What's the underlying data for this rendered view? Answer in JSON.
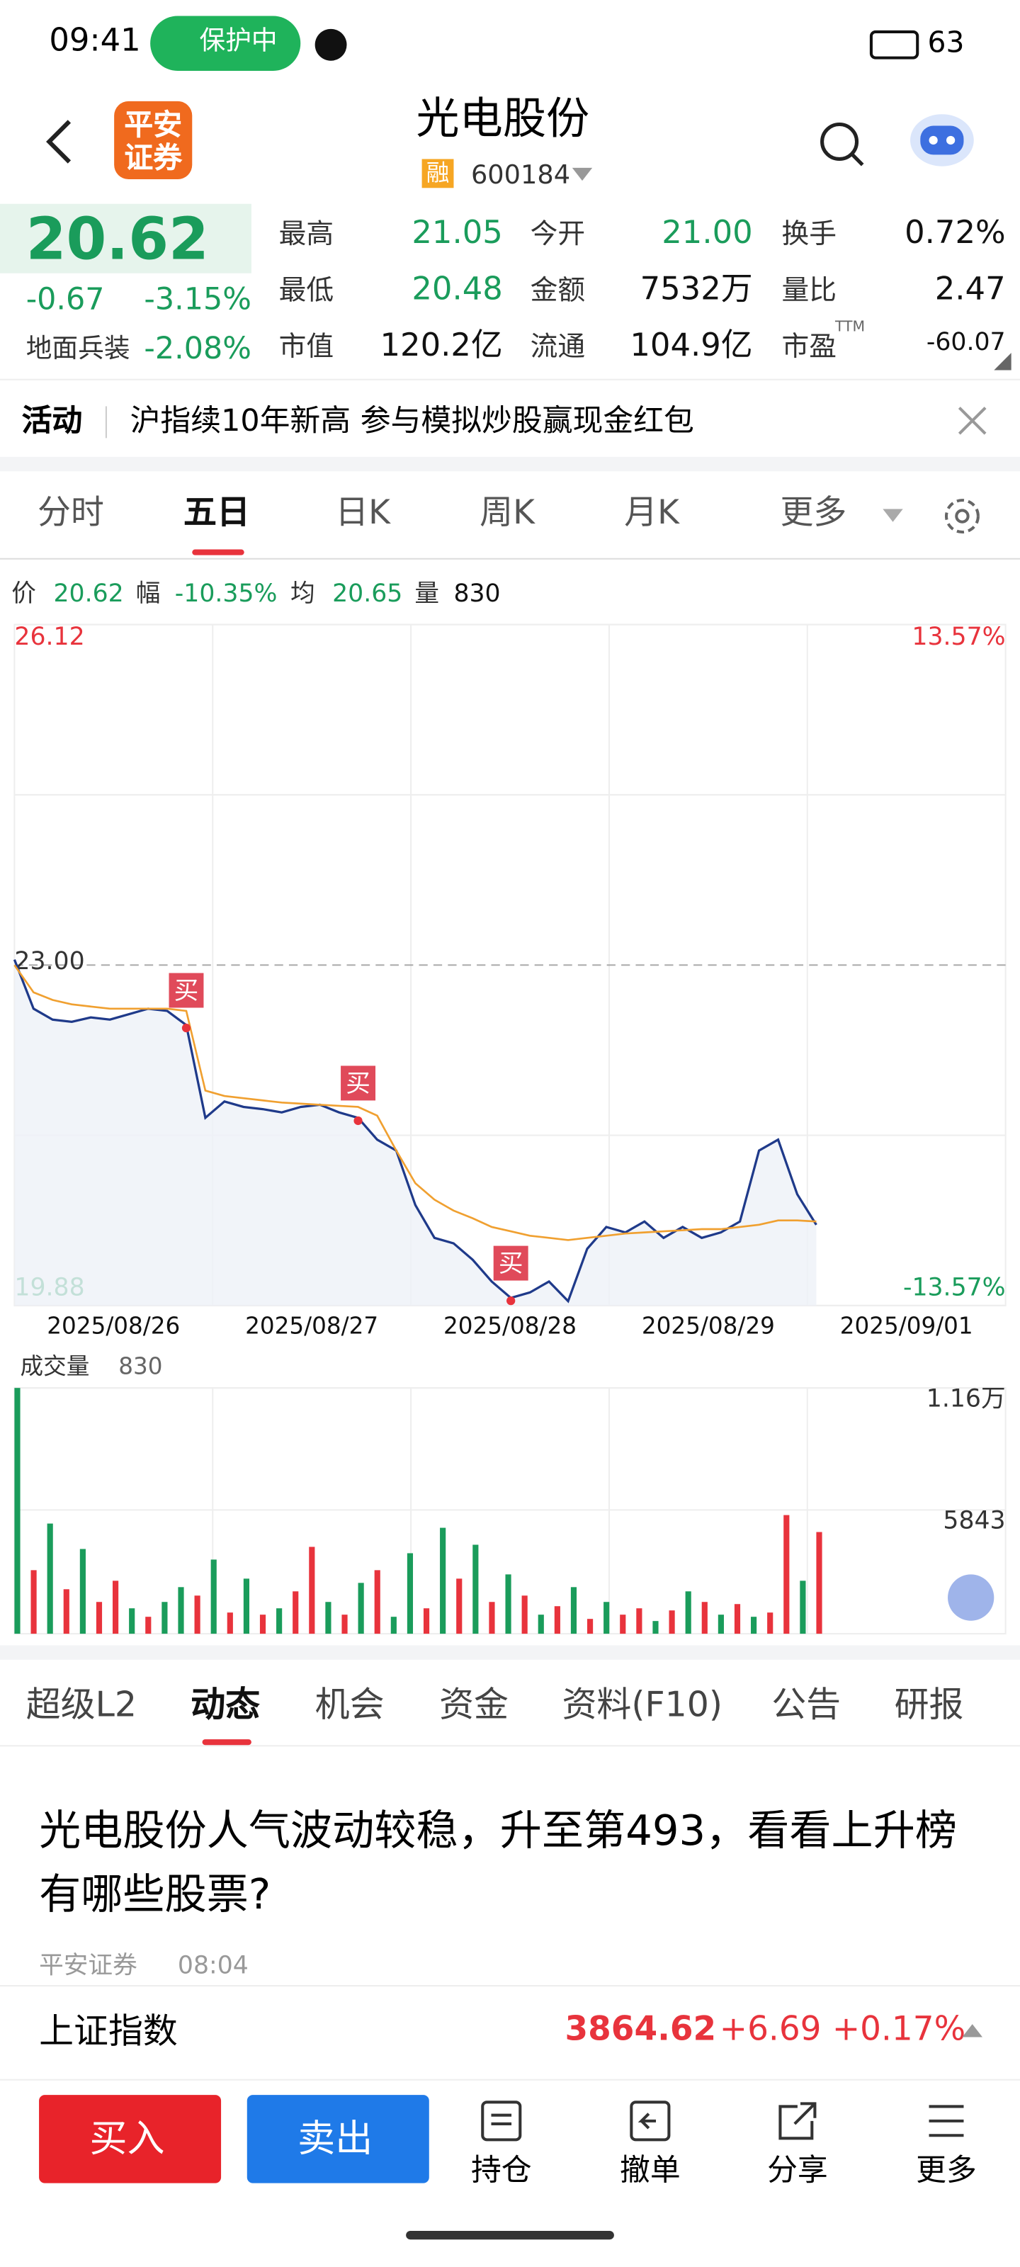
{
  "status_bar": {
    "time": "09:41",
    "badge": "保护中",
    "battery": "63"
  },
  "header": {
    "logo": [
      "平安",
      "证券"
    ],
    "title": "光电股份",
    "tag": "融",
    "code": "600184"
  },
  "quote": {
    "price": "20.62",
    "change": "-0.67",
    "change_pct": "-3.15%",
    "sector": "地面兵装",
    "sector_pct": "-2.08%",
    "fields": [
      [
        "最高",
        "21.05"
      ],
      [
        "今开",
        "21.00"
      ],
      [
        "换手",
        "0.72%"
      ],
      [
        "最低",
        "20.48"
      ],
      [
        "金额",
        "7532万"
      ],
      [
        "量比",
        "2.47"
      ],
      [
        "市值",
        "120.2亿"
      ],
      [
        "流通",
        "104.9亿"
      ],
      [
        "市盈",
        "-60.07"
      ]
    ],
    "field_colors": [
      "#1a9c5b",
      "#1a9c5b",
      "#111",
      "#1a9c5b",
      "#111",
      "#111",
      "#111",
      "#111",
      "#111"
    ],
    "ttm": "TTM"
  },
  "banner": {
    "label": "活动",
    "text": "沪指续10年新高 参与模拟炒股赢现金红包"
  },
  "period_tabs": {
    "items": [
      "分时",
      "五日",
      "日K",
      "周K",
      "月K",
      "更多"
    ],
    "active": 1
  },
  "chart": {
    "type": "line",
    "info": [
      [
        "价",
        "20.62"
      ],
      [
        "幅",
        "-10.35%"
      ],
      [
        "均",
        "20.65"
      ],
      [
        "量",
        "830"
      ]
    ],
    "categories": [
      "2025/08/26",
      "2025/08/27",
      "2025/08/28",
      "2025/08/29",
      "2025/09/01"
    ],
    "series": [
      {
        "color": "#1f3a8a",
        "values": [
          23.05,
          22.6,
          22.5,
          22.48,
          22.52,
          22.5,
          22.55,
          22.6,
          22.58,
          22.45,
          21.6,
          21.75,
          21.7,
          21.68,
          21.65,
          21.7,
          21.72,
          21.65,
          21.6,
          21.4,
          21.3,
          20.8,
          20.5,
          20.45,
          20.3,
          20.1,
          19.95,
          20.0,
          20.1,
          19.92,
          20.4,
          20.6,
          20.55,
          20.65,
          20.5,
          20.6,
          20.5,
          20.55,
          20.65,
          21.3,
          21.4,
          20.9,
          20.62
        ]
      },
      {
        "color": "#f0a030",
        "values": [
          23.0,
          22.75,
          22.68,
          22.64,
          22.62,
          22.6,
          22.6,
          22.6,
          22.6,
          22.58,
          21.85,
          21.8,
          21.78,
          21.76,
          21.74,
          21.73,
          21.72,
          21.71,
          21.7,
          21.62,
          21.3,
          21.0,
          20.85,
          20.75,
          20.68,
          20.6,
          20.56,
          20.52,
          20.5,
          20.48,
          20.5,
          20.52,
          20.54,
          20.55,
          20.56,
          20.57,
          20.58,
          20.58,
          20.6,
          20.62,
          20.66,
          20.66,
          20.65
        ]
      }
    ],
    "ylim": [
      19.88,
      26.12
    ],
    "yticks": [
      26.12,
      {
        "value": 23,
        "label": "23.00"
      },
      19.88
    ],
    "y2lim": [
      -13.57,
      13.57
    ],
    "y2ticks": [
      {
        "value": 13.57,
        "label": "13.57%"
      },
      {
        "value": -13.57,
        "label": "-13.57%"
      }
    ],
    "buy_labels": [
      "买",
      "买",
      "买"
    ],
    "grid": true
  },
  "volume": {
    "type": "bar",
    "title": "成交量",
    "current": "830",
    "ylim": [
      0,
      11600
    ],
    "yticks": [
      {
        "value": 11600,
        "label": "1.16万"
      },
      5843
    ],
    "values": [
      11600,
      3000,
      5200,
      2100,
      4000,
      1500,
      2500,
      1200,
      800,
      1500,
      2200,
      1800,
      3500,
      1000,
      2600,
      900,
      1200,
      2000,
      4100,
      1500,
      900,
      2400,
      3000,
      800,
      3800,
      1200,
      5000,
      2600,
      4200,
      1500,
      2800,
      1800,
      900,
      1300,
      2200,
      700,
      1500,
      900,
      1200,
      600,
      1100,
      2000,
      1500,
      900,
      1400,
      800,
      1000,
      5600,
      2500,
      4800
    ],
    "colors": [
      "#1a9c5b",
      "#e8333c",
      "#1a9c5b",
      "#e8333c",
      "#1a9c5b",
      "#e8333c",
      "#e8333c",
      "#1a9c5b",
      "#e8333c",
      "#1a9c5b",
      "#1a9c5b",
      "#e8333c",
      "#1a9c5b",
      "#e8333c",
      "#1a9c5b",
      "#e8333c",
      "#1a9c5b",
      "#e8333c",
      "#e8333c",
      "#1a9c5b",
      "#e8333c",
      "#1a9c5b",
      "#e8333c",
      "#1a9c5b",
      "#1a9c5b",
      "#e8333c",
      "#1a9c5b",
      "#e8333c",
      "#1a9c5b",
      "#e8333c",
      "#1a9c5b",
      "#e8333c",
      "#1a9c5b",
      "#e8333c",
      "#1a9c5b",
      "#e8333c",
      "#1a9c5b",
      "#e8333c",
      "#e8333c",
      "#1a9c5b",
      "#e8333c",
      "#1a9c5b",
      "#e8333c",
      "#1a9c5b",
      "#e8333c",
      "#1a9c5b",
      "#e8333c",
      "#e8333c",
      "#1a9c5b",
      "#e8333c"
    ]
  },
  "news_tabs": {
    "items": [
      "超级L2",
      "动态",
      "机会",
      "资金",
      "资料(F10)",
      "公告",
      "研报"
    ],
    "active": 1
  },
  "article": {
    "title": "光电股份人气波动较稳，升至第493，看看上升榜有哪些股票?",
    "source": "平安证券",
    "time": "08:04"
  },
  "index_bar": {
    "name": "上证指数",
    "value": "3864.62",
    "change": "+6.69",
    "change_pct": "+0.17%"
  },
  "bottom_nav": {
    "buy": "买入",
    "sell": "卖出",
    "items": [
      "持仓",
      "撤单",
      "分享",
      "更多"
    ]
  }
}
